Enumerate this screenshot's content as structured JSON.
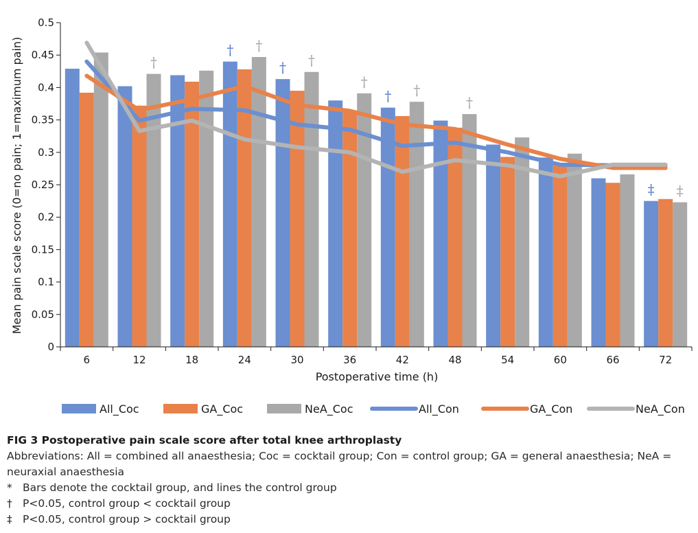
{
  "chart_data": {
    "type": "bar+line",
    "xlabel": "Postoperative time (h)",
    "ylabel": "Mean pain scale score (0=no pain; 1=maximum pain)",
    "ylim": [
      0,
      0.5
    ],
    "yticks": [
      "0",
      "0.05",
      "0.1",
      "0.15",
      "0.2",
      "0.25",
      "0.3",
      "0.35",
      "0.4",
      "0.45",
      "0.5"
    ],
    "categories": [
      "6",
      "12",
      "18",
      "24",
      "30",
      "36",
      "42",
      "48",
      "54",
      "60",
      "66",
      "72"
    ],
    "bar_series": [
      {
        "name": "All_Coc",
        "color": "#6b8fd0",
        "values": [
          0.429,
          0.402,
          0.419,
          0.44,
          0.413,
          0.38,
          0.369,
          0.349,
          0.312,
          0.292,
          0.26,
          0.225
        ]
      },
      {
        "name": "GA_Coc",
        "color": "#e8824a",
        "values": [
          0.392,
          0.372,
          0.409,
          0.428,
          0.395,
          0.362,
          0.356,
          0.338,
          0.293,
          0.283,
          0.253,
          0.228
        ]
      },
      {
        "name": "NeA_Coc",
        "color": "#a9a9a9",
        "values": [
          0.454,
          0.421,
          0.426,
          0.447,
          0.424,
          0.391,
          0.378,
          0.359,
          0.323,
          0.298,
          0.266,
          0.223
        ]
      }
    ],
    "line_series": [
      {
        "name": "All_Con",
        "color": "#6b8fd0",
        "values": [
          0.44,
          0.349,
          0.367,
          0.365,
          0.343,
          0.335,
          0.31,
          0.315,
          0.3,
          0.281,
          0.28,
          0.28
        ]
      },
      {
        "name": "GA_Con",
        "color": "#e8824a",
        "values": [
          0.418,
          0.365,
          0.382,
          0.402,
          0.373,
          0.364,
          0.343,
          0.336,
          0.312,
          0.29,
          0.276,
          0.276
        ]
      },
      {
        "name": "NeA_Con",
        "color": "#b4b4b4",
        "values": [
          0.469,
          0.333,
          0.349,
          0.32,
          0.308,
          0.3,
          0.27,
          0.288,
          0.28,
          0.263,
          0.281,
          0.281
        ]
      }
    ],
    "annotations": [
      {
        "text": "†",
        "category": "12",
        "series": "NeA_Coc"
      },
      {
        "text": "†",
        "category": "24",
        "series": "All_Coc"
      },
      {
        "text": "†",
        "category": "24",
        "series": "NeA_Coc"
      },
      {
        "text": "†",
        "category": "30",
        "series": "All_Coc"
      },
      {
        "text": "†",
        "category": "30",
        "series": "NeA_Coc"
      },
      {
        "text": "†",
        "category": "36",
        "series": "NeA_Coc"
      },
      {
        "text": "†",
        "category": "42",
        "series": "All_Coc"
      },
      {
        "text": "†",
        "category": "42",
        "series": "NeA_Coc"
      },
      {
        "text": "†",
        "category": "48",
        "series": "NeA_Coc"
      },
      {
        "text": "‡",
        "category": "72",
        "series": "All_Coc"
      },
      {
        "text": "‡",
        "category": "72",
        "series": "NeA_Coc"
      }
    ],
    "legend": {
      "placement": "bottom",
      "items": [
        "All_Coc",
        "GA_Coc",
        "NeA_Coc",
        "All_Con",
        "GA_Con",
        "NeA_Con"
      ]
    }
  },
  "caption": {
    "title": "FIG 3  Postoperative pain scale score after total knee arthroplasty",
    "abbreviations": "Abbreviations: All = combined all anaesthesia; Coc = cocktail group; Con = control group; GA = general anaesthesia; NeA = neuraxial anaesthesia",
    "notes": [
      {
        "symbol": "*",
        "text": "Bars denote the cocktail group, and lines the control group"
      },
      {
        "symbol": "†",
        "text": "P<0.05, control group < cocktail group"
      },
      {
        "symbol": "‡",
        "text": "P<0.05, control group > cocktail group"
      }
    ]
  }
}
